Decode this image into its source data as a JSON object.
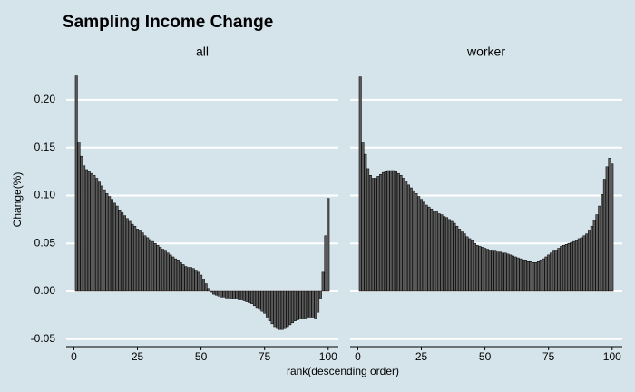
{
  "title": "Sampling Income Change",
  "xlabel": "rank(descending order)",
  "ylabel": "Change(%)",
  "background": "#d5e4eb",
  "chart_data": [
    {
      "type": "bar",
      "title": "all",
      "color": "#5a5a5a",
      "edge_color": "#000000",
      "grid": true,
      "x": [
        1,
        2,
        3,
        4,
        5,
        6,
        7,
        8,
        9,
        10,
        11,
        12,
        13,
        14,
        15,
        16,
        17,
        18,
        19,
        20,
        21,
        22,
        23,
        24,
        25,
        26,
        27,
        28,
        29,
        30,
        31,
        32,
        33,
        34,
        35,
        36,
        37,
        38,
        39,
        40,
        41,
        42,
        43,
        44,
        45,
        46,
        47,
        48,
        49,
        50,
        51,
        52,
        53,
        54,
        55,
        56,
        57,
        58,
        59,
        60,
        61,
        62,
        63,
        64,
        65,
        66,
        67,
        68,
        69,
        70,
        71,
        72,
        73,
        74,
        75,
        76,
        77,
        78,
        79,
        80,
        81,
        82,
        83,
        84,
        85,
        86,
        87,
        88,
        89,
        90,
        91,
        92,
        93,
        94,
        95,
        96,
        97,
        98,
        99,
        100
      ],
      "values": [
        0.225,
        0.156,
        0.141,
        0.131,
        0.127,
        0.125,
        0.123,
        0.121,
        0.118,
        0.114,
        0.11,
        0.106,
        0.102,
        0.099,
        0.096,
        0.092,
        0.089,
        0.085,
        0.082,
        0.079,
        0.076,
        0.073,
        0.07,
        0.068,
        0.065,
        0.063,
        0.061,
        0.058,
        0.056,
        0.054,
        0.052,
        0.05,
        0.048,
        0.046,
        0.044,
        0.042,
        0.04,
        0.038,
        0.036,
        0.034,
        0.032,
        0.03,
        0.028,
        0.026,
        0.025,
        0.025,
        0.024,
        0.022,
        0.02,
        0.017,
        0.013,
        0.008,
        0.003,
        -0.001,
        -0.003,
        -0.004,
        -0.005,
        -0.006,
        -0.006,
        -0.007,
        -0.007,
        -0.008,
        -0.008,
        -0.008,
        -0.009,
        -0.009,
        -0.01,
        -0.011,
        -0.012,
        -0.013,
        -0.015,
        -0.017,
        -0.019,
        -0.021,
        -0.023,
        -0.027,
        -0.031,
        -0.034,
        -0.037,
        -0.039,
        -0.04,
        -0.04,
        -0.039,
        -0.037,
        -0.035,
        -0.033,
        -0.031,
        -0.03,
        -0.029,
        -0.028,
        -0.028,
        -0.027,
        -0.027,
        -0.027,
        -0.028,
        -0.022,
        -0.008,
        0.02,
        0.058,
        0.097
      ],
      "xlim": [
        -3,
        104
      ],
      "xticks": [
        0,
        25,
        50,
        75,
        100
      ],
      "ylim": [
        -0.055,
        0.235
      ],
      "yticks": [
        -0.05,
        {
          "value": 0,
          "label": "0.00"
        },
        0.05,
        {
          "value": 0.1,
          "label": "0.10"
        },
        {
          "value": 0.15,
          "label": "0.15"
        },
        {
          "value": 0.2,
          "label": "0.20"
        }
      ]
    },
    {
      "type": "bar",
      "title": "worker",
      "color": "#5a5a5a",
      "edge_color": "#000000",
      "grid": true,
      "x": [
        1,
        2,
        3,
        4,
        5,
        6,
        7,
        8,
        9,
        10,
        11,
        12,
        13,
        14,
        15,
        16,
        17,
        18,
        19,
        20,
        21,
        22,
        23,
        24,
        25,
        26,
        27,
        28,
        29,
        30,
        31,
        32,
        33,
        34,
        35,
        36,
        37,
        38,
        39,
        40,
        41,
        42,
        43,
        44,
        45,
        46,
        47,
        48,
        49,
        50,
        51,
        52,
        53,
        54,
        55,
        56,
        57,
        58,
        59,
        60,
        61,
        62,
        63,
        64,
        65,
        66,
        67,
        68,
        69,
        70,
        71,
        72,
        73,
        74,
        75,
        76,
        77,
        78,
        79,
        80,
        81,
        82,
        83,
        84,
        85,
        86,
        87,
        88,
        89,
        90,
        91,
        92,
        93,
        94,
        95,
        96,
        97,
        98,
        99,
        100
      ],
      "values": [
        0.224,
        0.156,
        0.143,
        0.128,
        0.121,
        0.118,
        0.118,
        0.12,
        0.122,
        0.124,
        0.125,
        0.126,
        0.126,
        0.126,
        0.125,
        0.123,
        0.121,
        0.118,
        0.115,
        0.111,
        0.108,
        0.105,
        0.102,
        0.099,
        0.096,
        0.093,
        0.09,
        0.088,
        0.086,
        0.084,
        0.083,
        0.081,
        0.08,
        0.078,
        0.077,
        0.075,
        0.073,
        0.071,
        0.068,
        0.065,
        0.062,
        0.06,
        0.057,
        0.055,
        0.053,
        0.05,
        0.048,
        0.047,
        0.046,
        0.045,
        0.044,
        0.043,
        0.042,
        0.042,
        0.041,
        0.041,
        0.04,
        0.04,
        0.039,
        0.038,
        0.037,
        0.036,
        0.035,
        0.034,
        0.033,
        0.032,
        0.031,
        0.031,
        0.03,
        0.03,
        0.031,
        0.032,
        0.034,
        0.036,
        0.038,
        0.04,
        0.042,
        0.043,
        0.045,
        0.047,
        0.048,
        0.049,
        0.05,
        0.051,
        0.052,
        0.053,
        0.055,
        0.056,
        0.058,
        0.06,
        0.064,
        0.068,
        0.074,
        0.08,
        0.089,
        0.101,
        0.117,
        0.13,
        0.139,
        0.133
      ],
      "xlim": [
        -3,
        104
      ],
      "xticks": [
        0,
        25,
        50,
        75,
        100
      ],
      "ylim": [
        -0.055,
        0.235
      ],
      "yticks": [
        -0.05,
        0,
        0.05,
        0.1,
        0.15,
        0.2
      ]
    }
  ]
}
